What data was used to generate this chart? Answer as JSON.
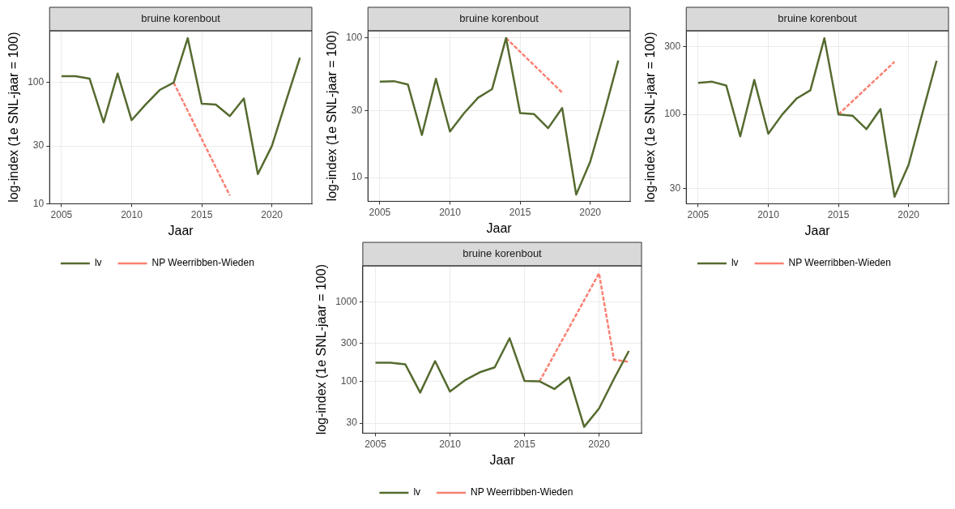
{
  "chart_data": [
    {
      "type": "line",
      "title": "bruine korenbout",
      "xlabel": "Jaar",
      "ylabel": "log-index (1e SNL-jaar = 100)",
      "log": "y",
      "grid": true,
      "legend": "bottom",
      "marker": "none",
      "x": [
        2005,
        2006,
        2007,
        2008,
        2009,
        2010,
        2011,
        2012,
        2013,
        2014,
        2015,
        2016,
        2017,
        2018,
        2019,
        2020,
        2021,
        2022
      ],
      "xlim": [
        2004.15,
        2022.85
      ],
      "xticks": [
        2005,
        2010,
        2015,
        2020
      ],
      "ylim": [
        10,
        268
      ],
      "yticks": [
        10,
        30,
        100
      ],
      "series": [
        {
          "name": "lv",
          "color": "#556b2f",
          "line_style": "solid",
          "values": [
            113,
            113,
            108,
            47,
            119,
            49,
            66,
            87,
            100,
            233,
            67,
            66,
            53,
            74,
            17.6,
            30,
            70,
            161
          ]
        },
        {
          "name": "NP Weerribben-Wieden",
          "color": "#fa8072",
          "line_style": "dashed",
          "x": [
            2013,
            2017
          ],
          "values": [
            100,
            11.7
          ]
        }
      ]
    },
    {
      "type": "line",
      "title": "bruine korenbout",
      "xlabel": "Jaar",
      "ylabel": "log-index (1e SNL-jaar = 100)",
      "log": "y",
      "grid": true,
      "legend": false,
      "marker": "none",
      "x": [
        2005,
        2006,
        2007,
        2008,
        2009,
        2010,
        2011,
        2012,
        2013,
        2014,
        2015,
        2016,
        2017,
        2018,
        2019,
        2020,
        2021,
        2022
      ],
      "xlim": [
        2004.15,
        2022.85
      ],
      "xticks": [
        2005,
        2010,
        2015,
        2020
      ],
      "ylim": [
        6.76,
        112.7
      ],
      "yticks": [
        10,
        30,
        100
      ],
      "series": [
        {
          "color": "#556b2f",
          "line_style": "solid",
          "values": [
            48.7,
            49.1,
            46.5,
            20.2,
            51,
            21.4,
            28.9,
            37.3,
            43,
            100,
            29,
            28.5,
            22.6,
            31.5,
            7.55,
            13,
            29.2,
            69
          ]
        },
        {
          "color": "#fa8072",
          "line_style": "dashed",
          "x": [
            2014,
            2018
          ],
          "values": [
            100,
            40.7
          ]
        }
      ]
    },
    {
      "type": "line",
      "title": "bruine korenbout",
      "xlabel": "Jaar",
      "ylabel": "log-index (1e SNL-jaar = 100)",
      "log": "y",
      "grid": true,
      "legend": "bottom",
      "marker": "none",
      "x": [
        2005,
        2006,
        2007,
        2008,
        2009,
        2010,
        2011,
        2012,
        2013,
        2014,
        2015,
        2016,
        2017,
        2018,
        2019,
        2020,
        2021,
        2022
      ],
      "xlim": [
        2004.15,
        2022.85
      ],
      "xticks": [
        2005,
        2010,
        2015,
        2020
      ],
      "ylim": [
        23.4,
        389
      ],
      "yticks": [
        30,
        100,
        300
      ],
      "series": [
        {
          "name": "lv",
          "color": "#556b2f",
          "line_style": "solid",
          "values": [
            167,
            170,
            160,
            70,
            175,
            73,
            100,
            129,
            148,
            345,
            100,
            98,
            78.7,
            109,
            26.2,
            44,
            103,
            239
          ]
        },
        {
          "name": "NP Weerribben-Wieden",
          "color": "#fa8072",
          "line_style": "dashed",
          "x": [
            2015,
            2019
          ],
          "values": [
            100,
            235
          ]
        }
      ]
    },
    {
      "type": "line",
      "title": "bruine korenbout",
      "xlabel": "Jaar",
      "ylabel": "log-index (1e SNL-jaar = 100)",
      "log": "y",
      "grid": true,
      "legend": "bottom",
      "marker": "none",
      "x": [
        2005,
        2006,
        2007,
        2008,
        2009,
        2010,
        2011,
        2012,
        2013,
        2014,
        2015,
        2016,
        2017,
        2018,
        2019,
        2020,
        2021,
        2022
      ],
      "xlim": [
        2004.15,
        2022.85
      ],
      "xticks": [
        2005,
        2010,
        2015,
        2020
      ],
      "ylim": [
        22.5,
        2851
      ],
      "yticks": [
        30,
        100,
        300,
        1000
      ],
      "series": [
        {
          "name": "lv",
          "color": "#556b2f",
          "line_style": "solid",
          "values": [
            173,
            173,
            165,
            72.8,
            181,
            75,
            104,
            131,
            151,
            351,
            102,
            101,
            80.7,
            113,
            27,
            45.9,
            108,
            243
          ]
        },
        {
          "name": "NP Weerribben-Wieden",
          "color": "#fa8072",
          "line_style": "dashed",
          "x": [
            2016,
            2020,
            2021,
            2022
          ],
          "values": [
            100,
            2302,
            189,
            177
          ]
        }
      ]
    }
  ]
}
